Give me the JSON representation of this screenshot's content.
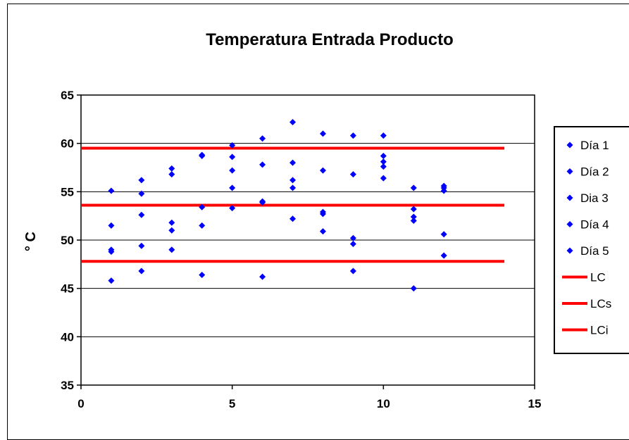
{
  "chart_data": {
    "type": "scatter",
    "title": "Temperatura Entrada Producto",
    "xlabel": "",
    "ylabel": "° C",
    "xlim": [
      0,
      15
    ],
    "ylim": [
      35,
      65
    ],
    "x_ticks": [
      "0",
      "5",
      "10",
      "15"
    ],
    "y_ticks": [
      "35",
      "40",
      "45",
      "50",
      "55",
      "60",
      "65"
    ],
    "grid": "horizontal",
    "legend_position": "right",
    "marker_color": "#0000FF",
    "line_color": "#FF0000",
    "series": [
      {
        "name": "Día 1",
        "x": [
          1,
          2,
          3,
          4,
          5,
          6,
          7,
          8,
          9,
          10,
          11,
          12
        ],
        "y": [
          55.1,
          56.2,
          57.4,
          58.7,
          59.8,
          60.5,
          62.2,
          61.0,
          60.8,
          60.8,
          55.4,
          55.6
        ]
      },
      {
        "name": "Día 2",
        "x": [
          1,
          2,
          3,
          4,
          5,
          6,
          7,
          8,
          9,
          10,
          11,
          12
        ],
        "y": [
          51.5,
          54.8,
          56.8,
          58.8,
          58.6,
          57.8,
          58.0,
          57.2,
          56.8,
          58.7,
          53.2,
          55.1
        ]
      },
      {
        "name": "Dia 3",
        "x": [
          1,
          2,
          3,
          4,
          5,
          6,
          7,
          8,
          9,
          10,
          11,
          12
        ],
        "y": [
          49.0,
          52.6,
          51.8,
          53.4,
          57.2,
          54.0,
          56.2,
          52.9,
          50.2,
          58.1,
          52.4,
          55.4
        ]
      },
      {
        "name": "Día 4",
        "x": [
          1,
          2,
          3,
          4,
          5,
          6,
          7,
          8,
          9,
          10,
          11,
          12
        ],
        "y": [
          48.8,
          49.4,
          51.0,
          51.5,
          55.4,
          53.9,
          55.4,
          52.7,
          49.6,
          57.6,
          52.0,
          50.6
        ]
      },
      {
        "name": "Día 5",
        "x": [
          1,
          2,
          3,
          4,
          5,
          6,
          7,
          8,
          9,
          10,
          11,
          12
        ],
        "y": [
          45.8,
          46.8,
          49.0,
          46.4,
          53.3,
          46.2,
          52.2,
          50.9,
          46.8,
          56.4,
          45.0,
          48.4
        ]
      }
    ],
    "lines": [
      {
        "name": "LC",
        "x": [
          0,
          14
        ],
        "y": [
          53.6,
          53.6
        ]
      },
      {
        "name": "LCs",
        "x": [
          0,
          14
        ],
        "y": [
          59.5,
          59.5
        ]
      },
      {
        "name": "LCi",
        "x": [
          0,
          14
        ],
        "y": [
          47.8,
          47.8
        ]
      }
    ]
  }
}
